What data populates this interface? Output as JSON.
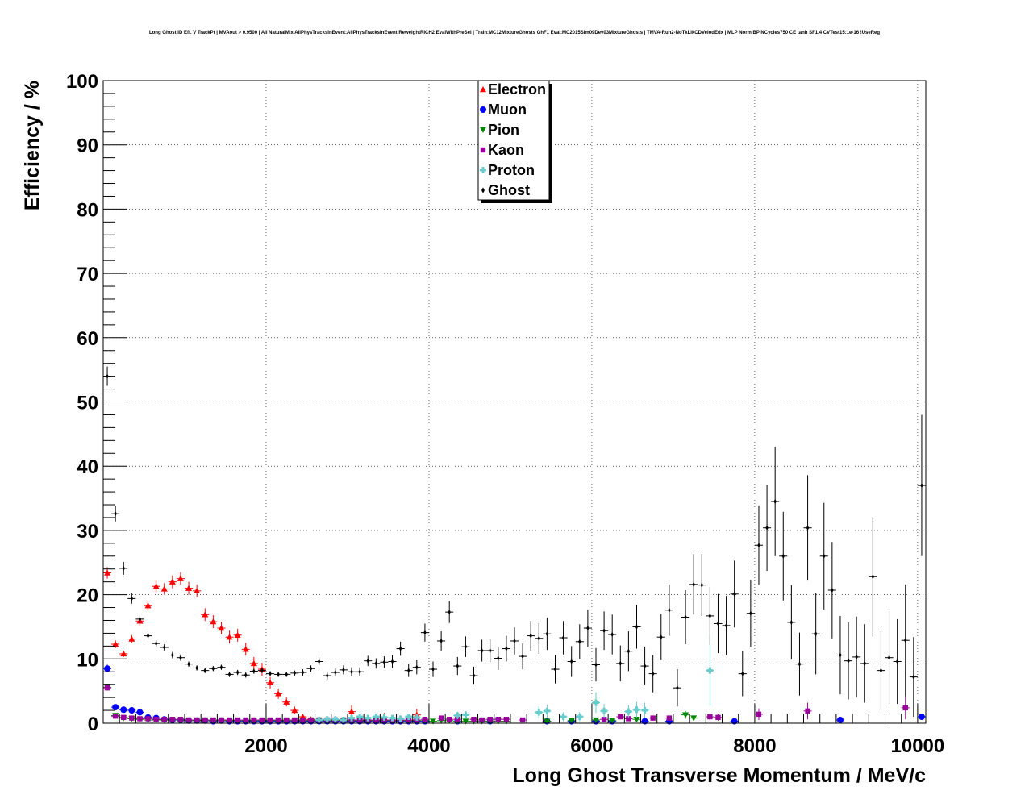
{
  "chart_data": {
    "type": "scatter",
    "title": "Long Ghost ID Eff. V TrackPt | MVAout > 0.9500 | All NaturalMix AllPhysTracksInEvent:AllPhysTracksInEvent ReweightRICH2 EvalWithPreSel | Train:MC12MixtureGhosts GhF1 Eval:MC2015Sim09Dev03MixtureGhosts | TMVA-Run2-NoTkLikCDVelodEdx | MLP Norm BP NCycles750 CE tanh SF1.4 CVTest15:1e-16 !UseReg",
    "xlabel": "Long Ghost Transverse Momentum / MeV/c",
    "ylabel": "Efficiency / %",
    "xlim": [
      0,
      10100
    ],
    "ylim": [
      0,
      100
    ],
    "xticks": [
      2000,
      4000,
      6000,
      8000,
      10000
    ],
    "xtick_labels": [
      "2000",
      "4000",
      "6000",
      "8000",
      "10000"
    ],
    "yticks": [
      0,
      10,
      20,
      30,
      40,
      50,
      60,
      70,
      80,
      90,
      100
    ],
    "ytick_labels": [
      "0",
      "10",
      "20",
      "30",
      "40",
      "50",
      "60",
      "70",
      "80",
      "90",
      "100"
    ],
    "grid": true,
    "legend_position": "top-center",
    "series": [
      {
        "name": "Electron",
        "color": "#ff0000",
        "marker": "triangle-up",
        "x": [
          50,
          150,
          250,
          350,
          450,
          550,
          650,
          750,
          850,
          950,
          1050,
          1150,
          1250,
          1350,
          1450,
          1550,
          1650,
          1750,
          1850,
          1950,
          2050,
          2150,
          2250,
          2350,
          2450,
          2550,
          2650,
          3050,
          3450,
          3850
        ],
        "y": [
          23.4,
          12.3,
          10.8,
          13.1,
          15.9,
          18.3,
          21.3,
          20.9,
          22.0,
          22.5,
          21.0,
          20.6,
          16.9,
          15.8,
          14.8,
          13.4,
          13.7,
          11.5,
          9.3,
          8.4,
          6.3,
          4.6,
          3.3,
          2.0,
          1.0,
          0.6,
          0.5,
          1.8,
          0.9,
          1.3
        ],
        "err": [
          0.9,
          0.6,
          0.5,
          0.6,
          0.7,
          0.8,
          0.9,
          0.9,
          1.0,
          1.0,
          1.0,
          1.0,
          1.0,
          1.0,
          1.0,
          1.0,
          1.0,
          1.0,
          1.0,
          1.0,
          0.9,
          0.8,
          0.7,
          0.6,
          0.5,
          0.4,
          0.4,
          1.0,
          0.7,
          0.9
        ]
      },
      {
        "name": "Muon",
        "color": "#0000ff",
        "marker": "circle",
        "x": [
          50,
          150,
          250,
          350,
          450,
          550,
          650,
          750,
          850,
          950,
          1050,
          1150,
          1250,
          1350,
          1450,
          1550,
          1650,
          1750,
          1850,
          1950,
          2050,
          2150,
          2250,
          2350,
          2450,
          2550,
          2650,
          2750,
          2850,
          2950,
          3050,
          3150,
          3250,
          3350,
          3450,
          3550,
          3650,
          3750,
          3850,
          3950,
          4350,
          4750,
          5450,
          5750,
          6050,
          6250,
          6650,
          6950,
          7750,
          9050,
          10050
        ],
        "y": [
          8.5,
          2.5,
          2.1,
          2.0,
          1.7,
          0.9,
          0.8,
          0.6,
          0.5,
          0.5,
          0.4,
          0.4,
          0.4,
          0.3,
          0.4,
          0.3,
          0.3,
          0.3,
          0.3,
          0.3,
          0.3,
          0.3,
          0.3,
          0.3,
          0.3,
          0.3,
          0.3,
          0.3,
          0.3,
          0.3,
          0.3,
          0.3,
          0.3,
          0.3,
          0.3,
          0.3,
          0.3,
          0.3,
          0.3,
          0.3,
          0.3,
          0.3,
          0.3,
          0.3,
          0.3,
          0.3,
          0.3,
          0.3,
          0.3,
          0.5,
          1.0
        ],
        "err": [
          0.6,
          0.3,
          0.3,
          0.3,
          0.3,
          0.2,
          0.2,
          0.2,
          0.2,
          0.2,
          0.2,
          0.2,
          0.2,
          0.2,
          0.2,
          0.2,
          0.2,
          0.2,
          0.2,
          0.2,
          0.2,
          0.2,
          0.2,
          0.2,
          0.2,
          0.2,
          0.2,
          0.2,
          0.2,
          0.2,
          0.2,
          0.2,
          0.2,
          0.2,
          0.2,
          0.2,
          0.2,
          0.2,
          0.2,
          0.2,
          0.2,
          0.2,
          0.2,
          0.2,
          0.2,
          0.2,
          0.2,
          0.2,
          0.3,
          0.4,
          0.5
        ]
      },
      {
        "name": "Pion",
        "color": "#008800",
        "marker": "triangle-down",
        "x": [
          50,
          150,
          250,
          350,
          450,
          550,
          650,
          750,
          850,
          950,
          1050,
          1150,
          1250,
          1350,
          1450,
          1550,
          1650,
          1750,
          1850,
          1950,
          2050,
          2150,
          2250,
          2350,
          2450,
          2550,
          2650,
          2750,
          2850,
          2950,
          3050,
          3150,
          3250,
          3350,
          3450,
          3550,
          3650,
          3750,
          3850,
          3950,
          4050,
          4150,
          4250,
          4350,
          4450,
          4550,
          4650,
          4750,
          4850,
          4950,
          5450,
          5750,
          6050,
          6250,
          6550,
          7150,
          7250
        ],
        "y": [
          5.6,
          1.2,
          0.8,
          0.7,
          0.6,
          0.5,
          0.5,
          0.5,
          0.5,
          0.4,
          0.4,
          0.4,
          0.4,
          0.4,
          0.4,
          0.4,
          0.4,
          0.4,
          0.4,
          0.4,
          0.4,
          0.4,
          0.4,
          0.4,
          0.4,
          0.4,
          0.4,
          0.4,
          0.4,
          0.4,
          0.4,
          0.4,
          0.4,
          0.4,
          0.4,
          0.4,
          0.4,
          0.4,
          0.4,
          0.4,
          0.3,
          0.4,
          0.4,
          0.3,
          0.3,
          0.3,
          0.3,
          0.3,
          0.3,
          0.3,
          0.3,
          0.4,
          0.5,
          0.4,
          0.6,
          1.3,
          0.8
        ],
        "err": [
          0.4,
          0.15,
          0.1,
          0.1,
          0.1,
          0.1,
          0.1,
          0.1,
          0.1,
          0.1,
          0.1,
          0.1,
          0.1,
          0.1,
          0.1,
          0.1,
          0.1,
          0.1,
          0.1,
          0.1,
          0.1,
          0.1,
          0.1,
          0.1,
          0.1,
          0.1,
          0.1,
          0.1,
          0.1,
          0.1,
          0.1,
          0.1,
          0.1,
          0.1,
          0.1,
          0.1,
          0.1,
          0.1,
          0.1,
          0.1,
          0.1,
          0.1,
          0.1,
          0.1,
          0.1,
          0.1,
          0.1,
          0.1,
          0.1,
          0.1,
          0.2,
          0.3,
          0.3,
          0.3,
          0.4,
          0.6,
          0.4
        ]
      },
      {
        "name": "Kaon",
        "color": "#990099",
        "marker": "square",
        "x": [
          50,
          150,
          250,
          350,
          450,
          550,
          650,
          750,
          850,
          950,
          1050,
          1150,
          1250,
          1350,
          1450,
          1550,
          1650,
          1750,
          1850,
          1950,
          2050,
          2150,
          2250,
          2350,
          2450,
          2550,
          2650,
          2750,
          2850,
          2950,
          3050,
          3150,
          3250,
          3350,
          3450,
          3550,
          3650,
          3750,
          3850,
          3950,
          4150,
          4250,
          4350,
          4550,
          4650,
          4750,
          4850,
          4950,
          5150,
          6150,
          6350,
          6450,
          6750,
          6950,
          7450,
          7550,
          8050,
          8650,
          9850
        ],
        "y": [
          5.5,
          1.1,
          0.9,
          0.8,
          0.7,
          0.7,
          0.6,
          0.6,
          0.6,
          0.6,
          0.5,
          0.5,
          0.5,
          0.5,
          0.5,
          0.5,
          0.5,
          0.5,
          0.5,
          0.5,
          0.5,
          0.5,
          0.5,
          0.5,
          0.5,
          0.5,
          0.5,
          0.5,
          0.5,
          0.5,
          0.5,
          0.5,
          0.5,
          0.5,
          0.5,
          0.5,
          0.5,
          0.5,
          0.5,
          0.6,
          0.8,
          0.6,
          0.6,
          0.6,
          0.5,
          0.6,
          0.6,
          0.6,
          0.5,
          0.6,
          1.0,
          0.7,
          0.8,
          0.8,
          1.0,
          0.9,
          1.4,
          1.9,
          2.4
        ],
        "err": [
          0.4,
          0.15,
          0.1,
          0.1,
          0.1,
          0.1,
          0.1,
          0.1,
          0.1,
          0.1,
          0.1,
          0.1,
          0.1,
          0.1,
          0.1,
          0.1,
          0.1,
          0.1,
          0.1,
          0.1,
          0.1,
          0.1,
          0.1,
          0.1,
          0.1,
          0.1,
          0.1,
          0.1,
          0.1,
          0.1,
          0.1,
          0.1,
          0.1,
          0.1,
          0.1,
          0.1,
          0.1,
          0.1,
          0.1,
          0.2,
          0.3,
          0.2,
          0.2,
          0.2,
          0.2,
          0.2,
          0.2,
          0.2,
          0.2,
          0.3,
          0.4,
          0.3,
          0.4,
          0.4,
          0.6,
          0.5,
          0.9,
          1.3,
          1.8
        ]
      },
      {
        "name": "Proton",
        "color": "#66cccc",
        "marker": "cross",
        "x": [
          2650,
          2750,
          2850,
          2950,
          3050,
          3150,
          3250,
          3350,
          3450,
          3550,
          3650,
          3750,
          3850,
          4350,
          4450,
          5350,
          5450,
          5650,
          5850,
          6050,
          6150,
          6450,
          6550,
          6650,
          7450
        ],
        "y": [
          0.5,
          0.6,
          0.6,
          0.5,
          0.8,
          1.0,
          0.8,
          1.0,
          0.9,
          0.8,
          0.7,
          1.0,
          0.9,
          1.2,
          1.3,
          1.7,
          1.9,
          1.0,
          1.0,
          3.2,
          1.9,
          1.8,
          2.1,
          2.0,
          8.2
        ],
        "err": [
          0.3,
          0.3,
          0.3,
          0.3,
          0.4,
          0.4,
          0.4,
          0.4,
          0.4,
          0.4,
          0.4,
          0.5,
          0.5,
          0.6,
          0.6,
          0.9,
          1.0,
          0.7,
          0.7,
          1.6,
          1.1,
          1.0,
          1.2,
          1.2,
          5.5
        ]
      },
      {
        "name": "Ghost",
        "color": "#000000",
        "marker": "diamond",
        "x": [
          50,
          150,
          250,
          350,
          450,
          550,
          650,
          750,
          850,
          950,
          1050,
          1150,
          1250,
          1350,
          1450,
          1550,
          1650,
          1750,
          1850,
          1950,
          2050,
          2150,
          2250,
          2350,
          2450,
          2550,
          2650,
          2750,
          2850,
          2950,
          3050,
          3150,
          3250,
          3350,
          3450,
          3550,
          3650,
          3750,
          3850,
          3950,
          4050,
          4150,
          4250,
          4350,
          4450,
          4550,
          4650,
          4750,
          4850,
          4950,
          5050,
          5150,
          5250,
          5350,
          5450,
          5550,
          5650,
          5750,
          5850,
          5950,
          6050,
          6150,
          6250,
          6350,
          6450,
          6550,
          6650,
          6750,
          6850,
          6950,
          7050,
          7150,
          7250,
          7350,
          7450,
          7550,
          7650,
          7750,
          7850,
          7950,
          8050,
          8150,
          8250,
          8350,
          8450,
          8550,
          8650,
          8750,
          8850,
          8950,
          9050,
          9150,
          9250,
          9350,
          9450,
          9550,
          9650,
          9750,
          9850,
          9950,
          10050
        ],
        "y": [
          54.0,
          32.6,
          24.1,
          19.4,
          16.2,
          13.6,
          12.4,
          11.8,
          10.6,
          10.2,
          9.2,
          8.6,
          8.2,
          8.5,
          8.7,
          7.6,
          7.9,
          7.5,
          8.1,
          8.2,
          7.7,
          7.6,
          7.6,
          7.8,
          7.9,
          8.5,
          9.6,
          7.4,
          7.9,
          8.3,
          8.0,
          8.0,
          9.7,
          9.3,
          9.5,
          9.6,
          11.6,
          8.2,
          8.7,
          14.1,
          8.4,
          12.8,
          17.3,
          8.9,
          11.9,
          7.4,
          11.3,
          11.3,
          10.1,
          11.6,
          12.8,
          10.4,
          13.6,
          13.2,
          13.9,
          8.4,
          13.3,
          9.6,
          12.7,
          14.8,
          9.1,
          14.4,
          13.8,
          9.3,
          11.2,
          15.0,
          8.9,
          7.7,
          13.4,
          17.6,
          5.5,
          16.5,
          21.6,
          21.5,
          16.7,
          15.5,
          15.2,
          20.1,
          7.7,
          17.1,
          27.7,
          30.4,
          34.5,
          26.0,
          15.7,
          9.2,
          30.4,
          13.9,
          26.0,
          20.7,
          10.6,
          9.7,
          10.3,
          9.3,
          22.8,
          8.2,
          10.2,
          9.6,
          12.9,
          7.2,
          37.0
        ],
        "err": [
          1.5,
          1.2,
          1.0,
          0.8,
          0.7,
          0.6,
          0.5,
          0.5,
          0.5,
          0.5,
          0.4,
          0.4,
          0.4,
          0.4,
          0.4,
          0.4,
          0.4,
          0.4,
          0.4,
          0.4,
          0.4,
          0.4,
          0.4,
          0.4,
          0.5,
          0.5,
          0.6,
          0.6,
          0.6,
          0.7,
          0.7,
          0.7,
          0.8,
          0.8,
          0.9,
          1.0,
          1.1,
          1.0,
          1.1,
          1.4,
          1.2,
          1.5,
          1.7,
          1.4,
          1.6,
          1.4,
          1.7,
          1.8,
          1.8,
          2.0,
          2.1,
          2.0,
          2.3,
          2.4,
          2.5,
          2.2,
          2.6,
          2.4,
          2.7,
          2.9,
          2.6,
          3.0,
          3.1,
          2.8,
          3.1,
          3.4,
          3.0,
          2.9,
          3.6,
          4.0,
          2.9,
          4.2,
          4.7,
          4.8,
          4.5,
          4.6,
          4.6,
          5.2,
          3.5,
          5.2,
          6.2,
          6.7,
          8.5,
          6.9,
          5.8,
          4.9,
          8.2,
          6.3,
          8.3,
          7.5,
          6.1,
          6.0,
          6.3,
          6.1,
          9.3,
          6.1,
          7.2,
          6.6,
          8.7,
          6.2,
          11.0
        ]
      }
    ]
  }
}
